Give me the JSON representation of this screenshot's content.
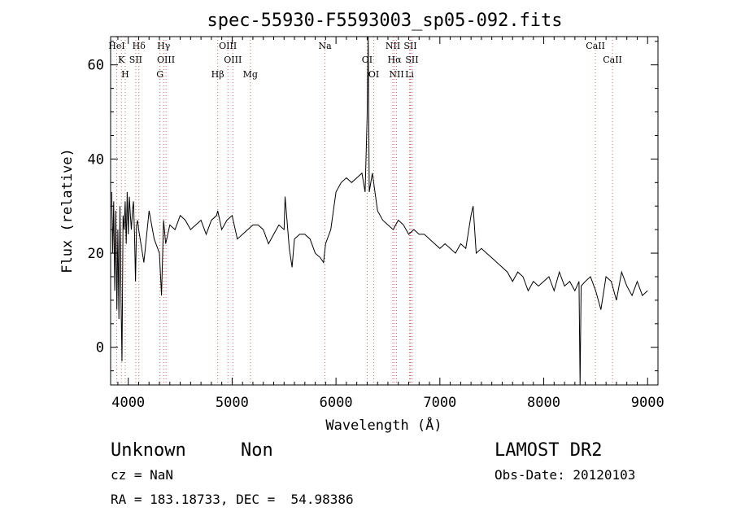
{
  "chart_data": {
    "type": "line",
    "title": "spec-55930-F5593003_sp05-092.fits",
    "xlabel": "Wavelength (Å)",
    "ylabel": "Flux (relative)",
    "xlim": [
      3830,
      9100
    ],
    "ylim": [
      -8,
      66
    ],
    "xticks": [
      4000,
      5000,
      6000,
      7000,
      8000,
      9000
    ],
    "yticks": [
      0,
      20,
      40,
      60
    ],
    "grid": false,
    "series": [
      {
        "x": [
          3840,
          3850,
          3860,
          3870,
          3880,
          3890,
          3900,
          3910,
          3920,
          3930,
          3940,
          3950,
          3960,
          3970,
          3980,
          3990,
          4000,
          4010,
          4020,
          4030,
          4040,
          4050,
          4060,
          4070,
          4080,
          4090,
          4100,
          4150,
          4200,
          4250,
          4300,
          4320,
          4340,
          4360,
          4400,
          4450,
          4500,
          4550,
          4600,
          4650,
          4700,
          4750,
          4800,
          4850,
          4861,
          4900,
          4950,
          5000,
          5050,
          5100,
          5150,
          5200,
          5250,
          5300,
          5350,
          5400,
          5450,
          5500,
          5510,
          5550,
          5577,
          5600,
          5650,
          5700,
          5750,
          5800,
          5850,
          5880,
          5900,
          5950,
          6000,
          6050,
          6100,
          6150,
          6200,
          6250,
          6280,
          6300,
          6310,
          6320,
          6350,
          6400,
          6450,
          6500,
          6550,
          6600,
          6650,
          6700,
          6750,
          6800,
          6850,
          6900,
          6950,
          7000,
          7050,
          7100,
          7150,
          7200,
          7250,
          7300,
          7320,
          7350,
          7400,
          7450,
          7500,
          7550,
          7600,
          7650,
          7700,
          7750,
          7800,
          7850,
          7900,
          7950,
          8000,
          8050,
          8100,
          8150,
          8200,
          8250,
          8300,
          8340,
          8350,
          8360,
          8400,
          8450,
          8500,
          8550,
          8600,
          8650,
          8700,
          8750,
          8800,
          8850,
          8900,
          8950,
          9000
        ],
        "y": [
          33,
          20,
          31,
          12,
          29,
          8,
          25,
          6,
          30,
          10,
          -3,
          28,
          25,
          31,
          22,
          33,
          24,
          32,
          28,
          25,
          29,
          31,
          24,
          14,
          26,
          27,
          25,
          18,
          29,
          23,
          20,
          11,
          27,
          22,
          26,
          25,
          28,
          27,
          25,
          26,
          27,
          24,
          27,
          28,
          29,
          25,
          27,
          28,
          23,
          24,
          25,
          26,
          26,
          25,
          22,
          24,
          26,
          25,
          32,
          21,
          17,
          23,
          24,
          24,
          23,
          20,
          19,
          18,
          22,
          25,
          33,
          35,
          36,
          35,
          36,
          37,
          33,
          49,
          67,
          33,
          37,
          29,
          27,
          26,
          25,
          27,
          26,
          24,
          25,
          24,
          24,
          23,
          22,
          21,
          22,
          21,
          20,
          22,
          21,
          28,
          30,
          20,
          21,
          20,
          19,
          18,
          17,
          16,
          14,
          16,
          15,
          12,
          14,
          13,
          14,
          15,
          12,
          16,
          13,
          14,
          12,
          14,
          -9,
          13,
          14,
          15,
          12,
          8,
          15,
          14,
          10,
          16,
          13,
          11,
          14,
          11,
          12
        ]
      }
    ],
    "line_markers": [
      {
        "name": "HeI",
        "x": 3889
      },
      {
        "name": "K",
        "x": 3934
      },
      {
        "name": "H",
        "x": 3970
      },
      {
        "name": "Hδ",
        "x": 4102
      },
      {
        "name": "SII",
        "x": 4072
      },
      {
        "name": "G",
        "x": 4305
      },
      {
        "name": "Hγ",
        "x": 4341
      },
      {
        "name": "OIII",
        "x": 4363
      },
      {
        "name": "Hβ",
        "x": 4861
      },
      {
        "name": "OIII",
        "x": 4959
      },
      {
        "name": "OIII",
        "x": 5007
      },
      {
        "name": "Mg",
        "x": 5175
      },
      {
        "name": "Na",
        "x": 5894
      },
      {
        "name": "OI",
        "x": 6300
      },
      {
        "name": "OI",
        "x": 6364
      },
      {
        "name": "NII",
        "x": 6548
      },
      {
        "name": "Hα",
        "x": 6563
      },
      {
        "name": "NII",
        "x": 6583
      },
      {
        "name": "SII",
        "x": 6716
      },
      {
        "name": "SII",
        "x": 6731
      },
      {
        "name": "Li",
        "x": 6708
      },
      {
        "name": "CaII",
        "x": 8498
      },
      {
        "name": "CaII",
        "x": 8662
      }
    ]
  },
  "footer": {
    "class_label": "Unknown",
    "subclass_label": "Non",
    "cz_text": "cz = NaN",
    "coords_text": "RA = 183.18733, DEC =  54.98386",
    "survey_label": "LAMOST DR2",
    "obs_date_text": "Obs-Date: 20120103"
  },
  "colors": {
    "axes": "#000000",
    "spectrum": "#000000",
    "marker_lines": "#e06060"
  }
}
